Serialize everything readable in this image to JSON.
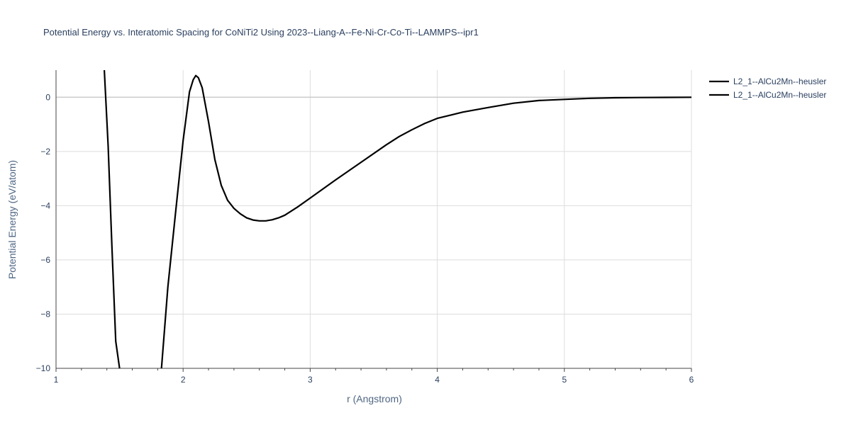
{
  "chart_data": {
    "type": "line",
    "title": "Potential Energy vs. Interatomic Spacing for CoNiTi2 Using 2023--Liang-A--Fe-Ni-Cr-Co-Ti--LAMMPS--ipr1",
    "xlabel": "r (Angstrom)",
    "ylabel": "Potential Energy (eV/atom)",
    "xlim": [
      1,
      6
    ],
    "ylim": [
      -10,
      1
    ],
    "x_ticks": [
      1,
      2,
      3,
      4,
      5,
      6
    ],
    "y_ticks": [
      0,
      -2,
      -4,
      -6,
      -8,
      -10
    ],
    "y_tick_labels": [
      "0",
      "−2",
      "−4",
      "−6",
      "−8",
      "−10"
    ],
    "grid": true,
    "legend_position": "top-right",
    "series": [
      {
        "name": "L2_1--AlCu2Mn--heusler",
        "color": "#000000",
        "x": [
          1.38,
          1.41,
          1.44,
          1.47,
          1.5
        ],
        "y": [
          1.0,
          -1.8,
          -5.5,
          -9.0,
          -10.0
        ]
      },
      {
        "name": "L2_1--AlCu2Mn--heusler",
        "color": "#000000",
        "x": [
          1.83,
          1.88,
          1.94,
          2.0,
          2.05,
          2.08,
          2.1,
          2.12,
          2.15,
          2.2,
          2.25,
          2.3,
          2.35,
          2.4,
          2.45,
          2.5,
          2.55,
          2.6,
          2.65,
          2.7,
          2.75,
          2.8,
          2.9,
          3.0,
          3.2,
          3.4,
          3.6,
          3.7,
          3.8,
          3.9,
          4.0,
          4.2,
          4.4,
          4.6,
          4.8,
          5.0,
          5.2,
          5.4,
          5.6,
          5.8,
          6.0
        ],
        "y": [
          -10.0,
          -7.0,
          -4.3,
          -1.6,
          0.2,
          0.65,
          0.8,
          0.72,
          0.35,
          -0.9,
          -2.3,
          -3.25,
          -3.8,
          -4.1,
          -4.3,
          -4.45,
          -4.53,
          -4.56,
          -4.56,
          -4.52,
          -4.45,
          -4.35,
          -4.05,
          -3.72,
          -3.05,
          -2.4,
          -1.75,
          -1.45,
          -1.2,
          -0.97,
          -0.78,
          -0.55,
          -0.38,
          -0.22,
          -0.12,
          -0.08,
          -0.04,
          -0.02,
          -0.01,
          -0.005,
          0.0
        ]
      }
    ]
  }
}
